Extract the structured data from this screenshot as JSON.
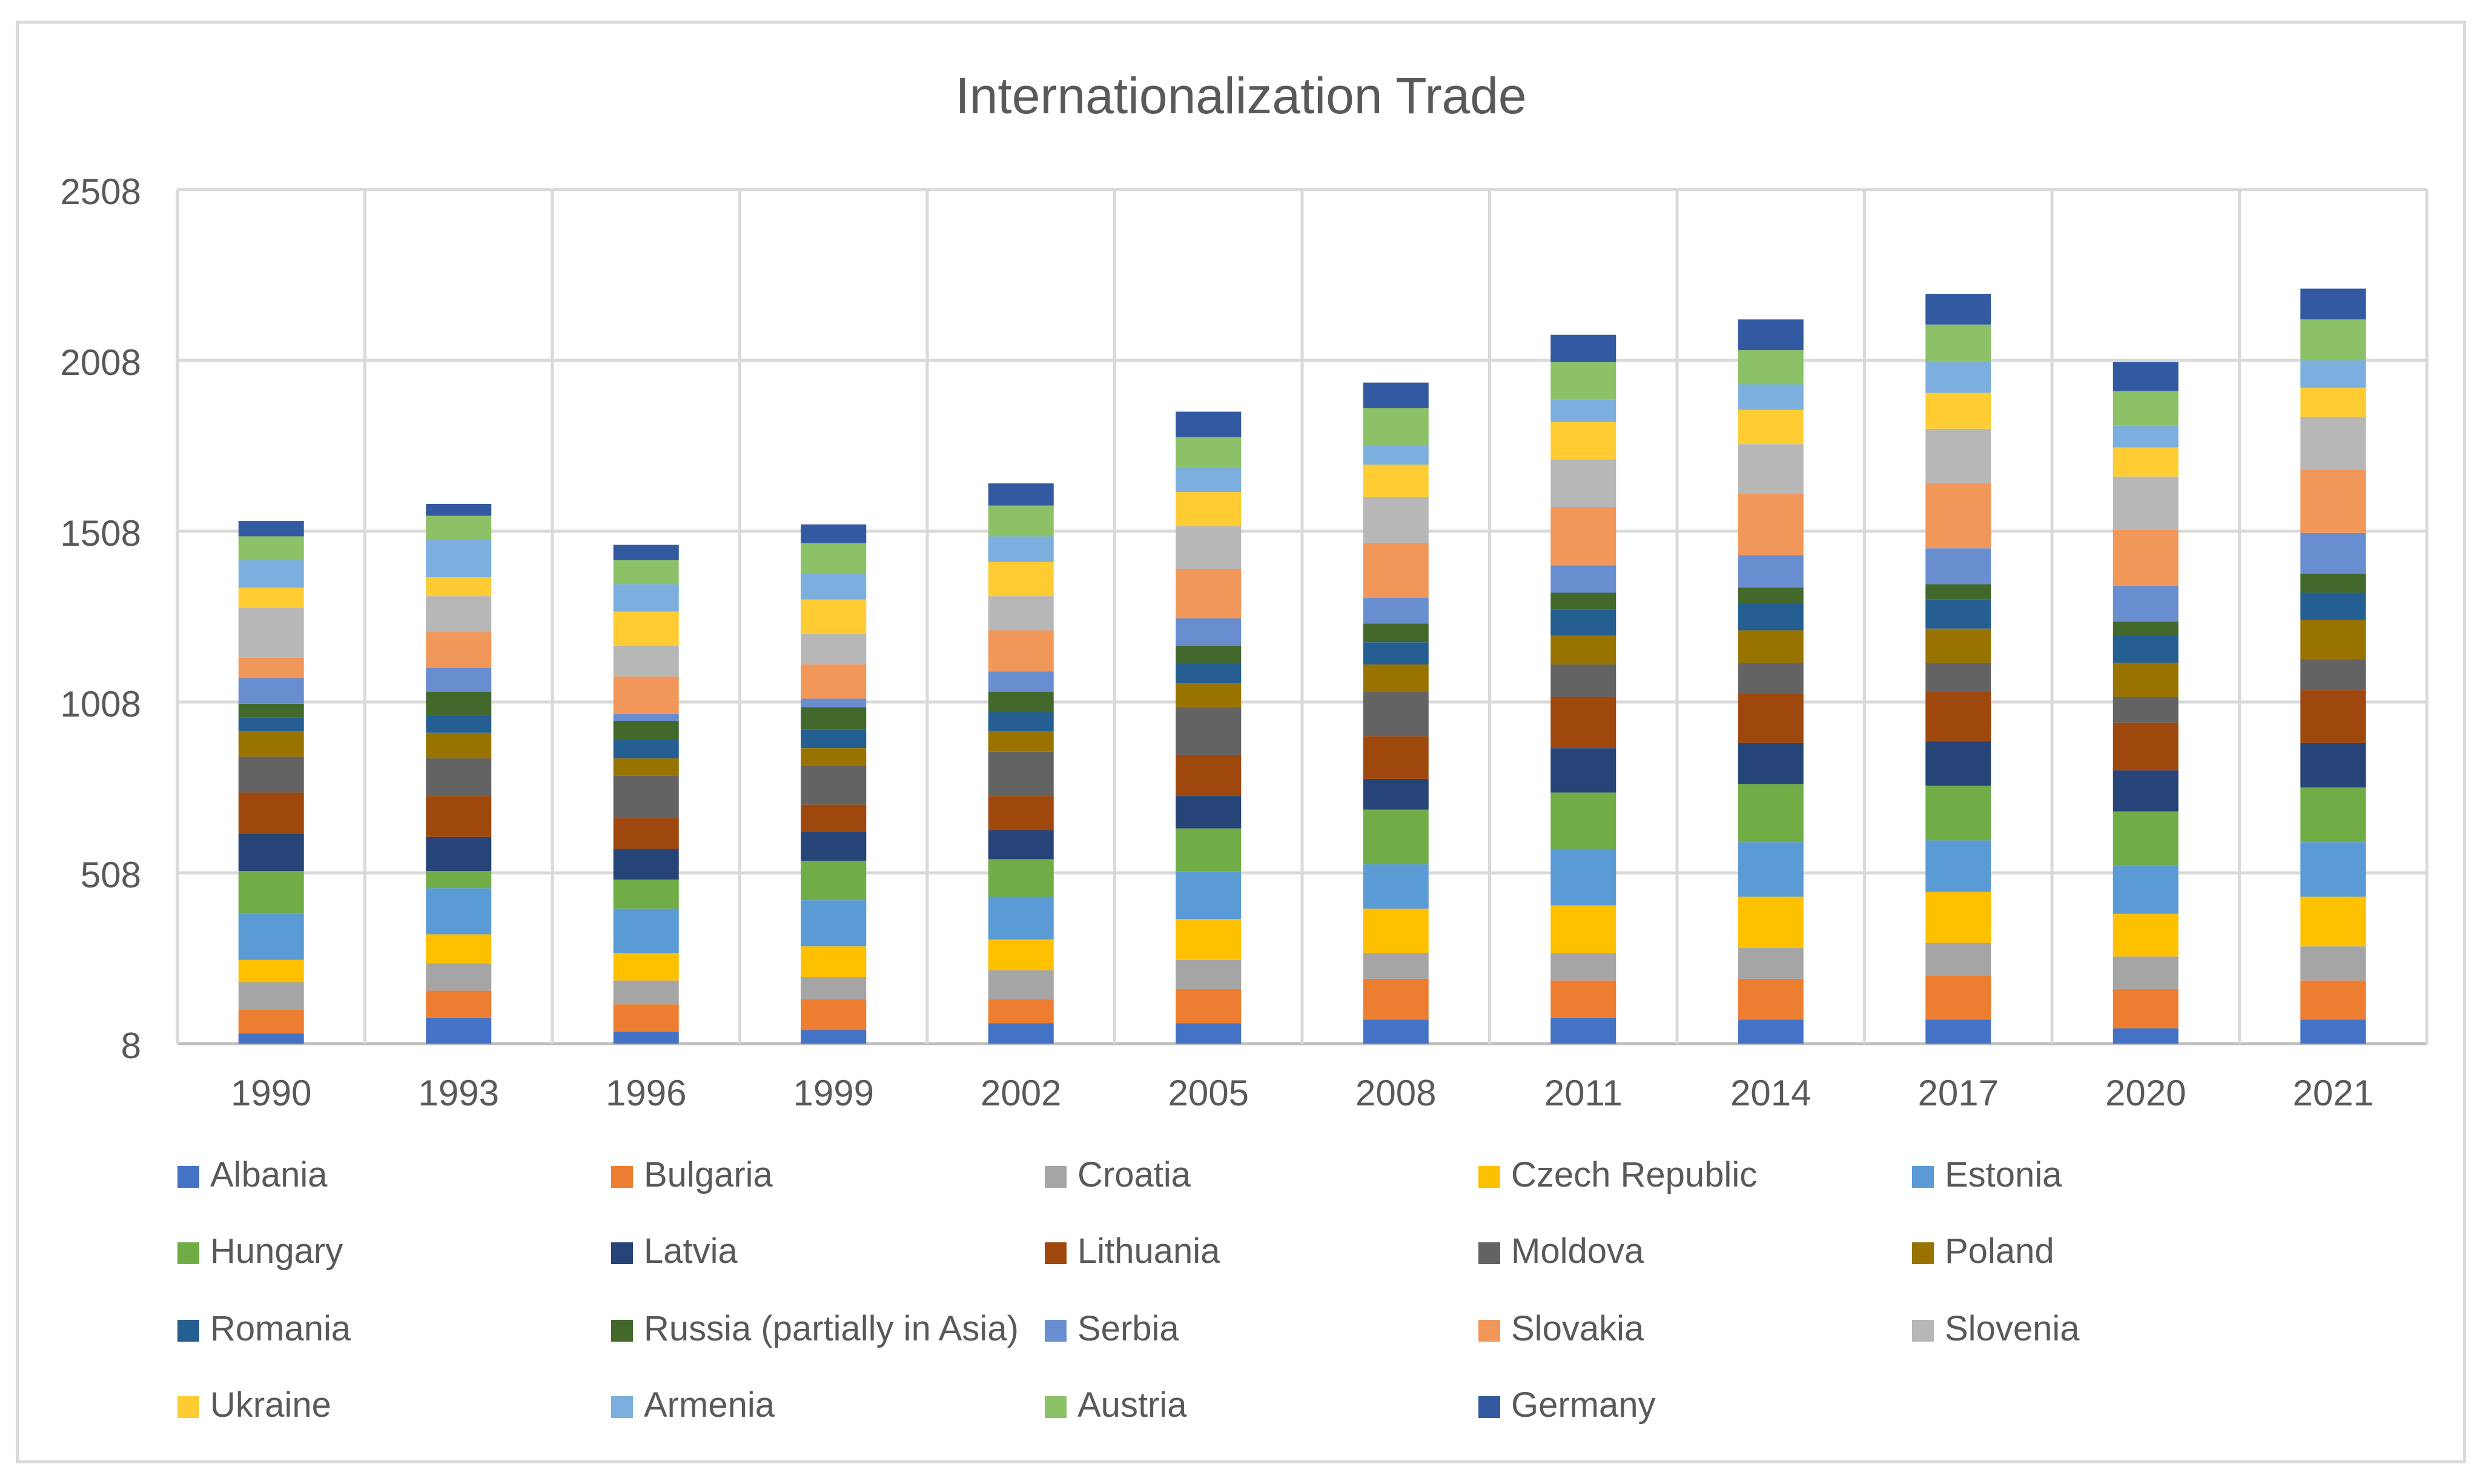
{
  "chart_data": {
    "type": "bar",
    "stacked": true,
    "title": "Internationalization Trade",
    "xlabel": "",
    "ylabel": "",
    "ylim": [
      8,
      2508
    ],
    "yticks": [
      8,
      508,
      1008,
      1508,
      2008,
      2508
    ],
    "grid": true,
    "legend_position": "bottom",
    "categories": [
      "1990",
      "1993",
      "1996",
      "1999",
      "2002",
      "2005",
      "2008",
      "2011",
      "2014",
      "2017",
      "2020",
      "2021"
    ],
    "series": [
      {
        "name": "Albania",
        "color": "#4472C4",
        "values": [
          30,
          75,
          35,
          40,
          60,
          60,
          70,
          75,
          70,
          70,
          45,
          70
        ]
      },
      {
        "name": "Bulgaria",
        "color": "#ED7D31",
        "values": [
          70,
          80,
          80,
          90,
          70,
          100,
          120,
          110,
          120,
          130,
          115,
          115
        ]
      },
      {
        "name": "Croatia",
        "color": "#A5A5A5",
        "values": [
          80,
          80,
          70,
          65,
          85,
          85,
          75,
          80,
          90,
          95,
          95,
          100
        ]
      },
      {
        "name": "Czech Republic",
        "color": "#FFC000",
        "values": [
          65,
          85,
          80,
          90,
          90,
          120,
          130,
          140,
          150,
          150,
          125,
          145
        ]
      },
      {
        "name": "Estonia",
        "color": "#5B9BD5",
        "values": [
          135,
          135,
          130,
          135,
          125,
          140,
          130,
          165,
          160,
          150,
          140,
          160
        ]
      },
      {
        "name": "Hungary",
        "color": "#70AD47",
        "values": [
          125,
          50,
          85,
          115,
          110,
          125,
          160,
          165,
          170,
          160,
          160,
          160
        ]
      },
      {
        "name": "Latvia",
        "color": "#264478",
        "values": [
          110,
          100,
          90,
          85,
          85,
          95,
          90,
          130,
          120,
          130,
          120,
          130
        ]
      },
      {
        "name": "Lithuania",
        "color": "#9E480E",
        "values": [
          120,
          120,
          90,
          80,
          100,
          120,
          125,
          150,
          145,
          145,
          140,
          155
        ]
      },
      {
        "name": "Moldova",
        "color": "#636363",
        "values": [
          105,
          110,
          125,
          115,
          130,
          140,
          130,
          95,
          90,
          85,
          75,
          90
        ]
      },
      {
        "name": "Poland",
        "color": "#997300",
        "values": [
          75,
          75,
          50,
          50,
          60,
          70,
          80,
          85,
          95,
          100,
          100,
          115
        ]
      },
      {
        "name": "Romania",
        "color": "#255E91",
        "values": [
          40,
          50,
          55,
          55,
          55,
          60,
          65,
          75,
          80,
          85,
          80,
          80
        ]
      },
      {
        "name": "Russia (partially in Asia)",
        "color": "#43682B",
        "values": [
          40,
          70,
          55,
          65,
          60,
          50,
          55,
          50,
          45,
          45,
          40,
          55
        ]
      },
      {
        "name": "Serbia",
        "color": "#698ED0",
        "values": [
          75,
          70,
          20,
          25,
          60,
          80,
          75,
          80,
          95,
          105,
          105,
          120
        ]
      },
      {
        "name": "Slovakia",
        "color": "#F1975A",
        "values": [
          60,
          105,
          110,
          100,
          120,
          145,
          160,
          170,
          180,
          190,
          165,
          185
        ]
      },
      {
        "name": "Slovenia",
        "color": "#B7B7B7",
        "values": [
          145,
          105,
          90,
          90,
          100,
          125,
          135,
          140,
          145,
          160,
          155,
          155
        ]
      },
      {
        "name": "Ukraine",
        "color": "#FFCD33",
        "values": [
          60,
          55,
          100,
          100,
          100,
          100,
          95,
          110,
          100,
          105,
          85,
          85
        ]
      },
      {
        "name": "Armenia",
        "color": "#7CAFDD",
        "values": [
          80,
          110,
          80,
          75,
          75,
          70,
          55,
          65,
          75,
          90,
          65,
          80
        ]
      },
      {
        "name": "Austria",
        "color": "#8CC168",
        "values": [
          70,
          70,
          70,
          90,
          90,
          90,
          110,
          110,
          100,
          110,
          100,
          120
        ]
      },
      {
        "name": "Germany",
        "color": "#335AA1",
        "values": [
          45,
          35,
          45,
          55,
          65,
          75,
          75,
          80,
          90,
          90,
          85,
          90
        ]
      }
    ]
  }
}
